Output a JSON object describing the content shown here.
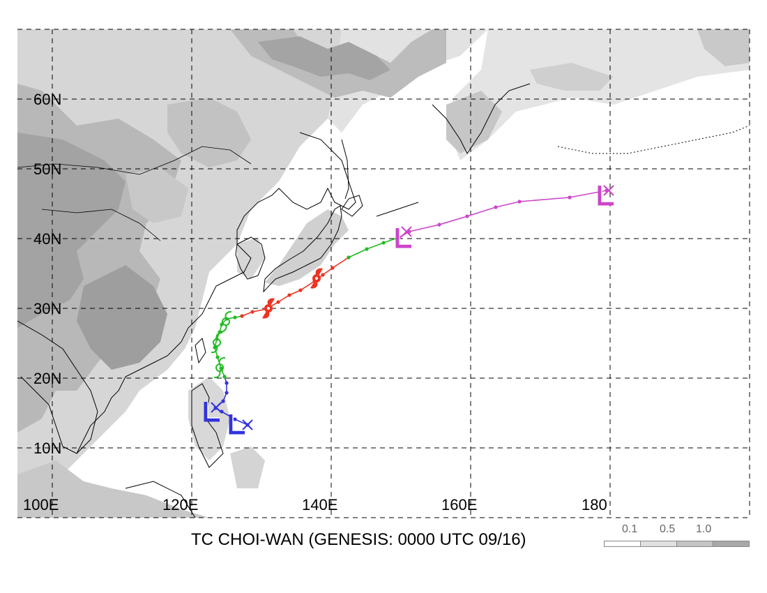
{
  "map": {
    "title": "TC CHOI-WAN (GENESIS: 0000 UTC 09/16)",
    "lat_labels": [
      "10N",
      "20N",
      "30N",
      "40N",
      "50N",
      "60N"
    ],
    "lon_labels": [
      "100E",
      "120E",
      "140E",
      "160E",
      "180"
    ],
    "extent": {
      "lon": [
        100,
        205
      ],
      "lat": [
        0,
        70
      ]
    },
    "legend": {
      "ticks": [
        "0.1",
        "0.5",
        "1.0"
      ],
      "colors": [
        "#ffffff",
        "#e0e0e0",
        "#c4c4c4",
        "#a8a8a8"
      ]
    },
    "track_colors": {
      "genesis": "#3333dd",
      "tropical": "#22bb22",
      "typhoon": "#ee3322",
      "extratropical": "#cc44cc"
    },
    "tracks": [
      {
        "stage": "genesis",
        "points": [
          [
            133.0,
            13.3
          ],
          [
            131.2,
            14.1
          ],
          [
            129.3,
            15.2
          ],
          [
            128.4,
            15.7
          ],
          [
            129.5,
            16.7
          ],
          [
            130.0,
            17.9
          ],
          [
            130.0,
            19.3
          ],
          [
            129.7,
            20.2
          ]
        ]
      },
      {
        "stage": "tropical",
        "points": [
          [
            129.7,
            20.2
          ],
          [
            129.2,
            21.4
          ],
          [
            128.7,
            23.0
          ],
          [
            128.3,
            24.4
          ],
          [
            128.6,
            25.6
          ],
          [
            129.0,
            26.6
          ],
          [
            129.3,
            27.7
          ],
          [
            130.0,
            28.5
          ],
          [
            131.2,
            28.7
          ],
          [
            132.2,
            28.9
          ]
        ]
      },
      {
        "stage": "typhoon",
        "points": [
          [
            132.2,
            28.9
          ],
          [
            133.7,
            29.5
          ],
          [
            135.7,
            29.9
          ],
          [
            137.4,
            30.9
          ],
          [
            139.0,
            31.9
          ],
          [
            140.6,
            32.6
          ],
          [
            142.6,
            33.9
          ],
          [
            143.8,
            34.8
          ],
          [
            145.2,
            35.8
          ],
          [
            147.5,
            37.3
          ]
        ]
      },
      {
        "stage": "tropical",
        "points": [
          [
            147.5,
            37.3
          ],
          [
            150.1,
            38.5
          ],
          [
            152.5,
            39.4
          ],
          [
            154.8,
            40.2
          ]
        ]
      },
      {
        "stage": "extratropical",
        "points": [
          [
            154.8,
            40.2
          ],
          [
            156.2,
            41.0
          ],
          [
            160.5,
            42.0
          ],
          [
            164.5,
            43.2
          ],
          [
            168.6,
            44.5
          ],
          [
            172.0,
            45.3
          ],
          [
            179.2,
            45.9
          ],
          [
            184.5,
            46.9
          ]
        ]
      }
    ],
    "markers": [
      {
        "type": "start-x",
        "color": "genesis",
        "lon": 133.0,
        "lat": 13.3
      },
      {
        "type": "L",
        "color": "genesis",
        "lon": 131.2,
        "lat": 13.4
      },
      {
        "type": "L",
        "color": "genesis",
        "lon": 127.6,
        "lat": 15.2
      },
      {
        "type": "start-x",
        "color": "genesis",
        "lon": 128.5,
        "lat": 15.8
      },
      {
        "type": "storm",
        "color": "tropical",
        "lon": 128.6,
        "lat": 25.1
      },
      {
        "type": "storm",
        "color": "tropical",
        "lon": 129.0,
        "lat": 21.5
      },
      {
        "type": "storm",
        "color": "tropical",
        "lon": 129.9,
        "lat": 28.1
      },
      {
        "type": "typhoon",
        "color": "typhoon",
        "lon": 136.0,
        "lat": 30.0
      },
      {
        "type": "typhoon",
        "color": "typhoon",
        "lon": 142.9,
        "lat": 34.3
      },
      {
        "type": "L",
        "color": "extratropical",
        "lon": 155.1,
        "lat": 40.1
      },
      {
        "type": "start-x",
        "color": "extratropical",
        "lon": 155.8,
        "lat": 41.0
      },
      {
        "type": "L",
        "color": "extratropical",
        "lon": 184.1,
        "lat": 46.2
      },
      {
        "type": "start-x",
        "color": "extratropical",
        "lon": 184.8,
        "lat": 46.9
      }
    ]
  }
}
